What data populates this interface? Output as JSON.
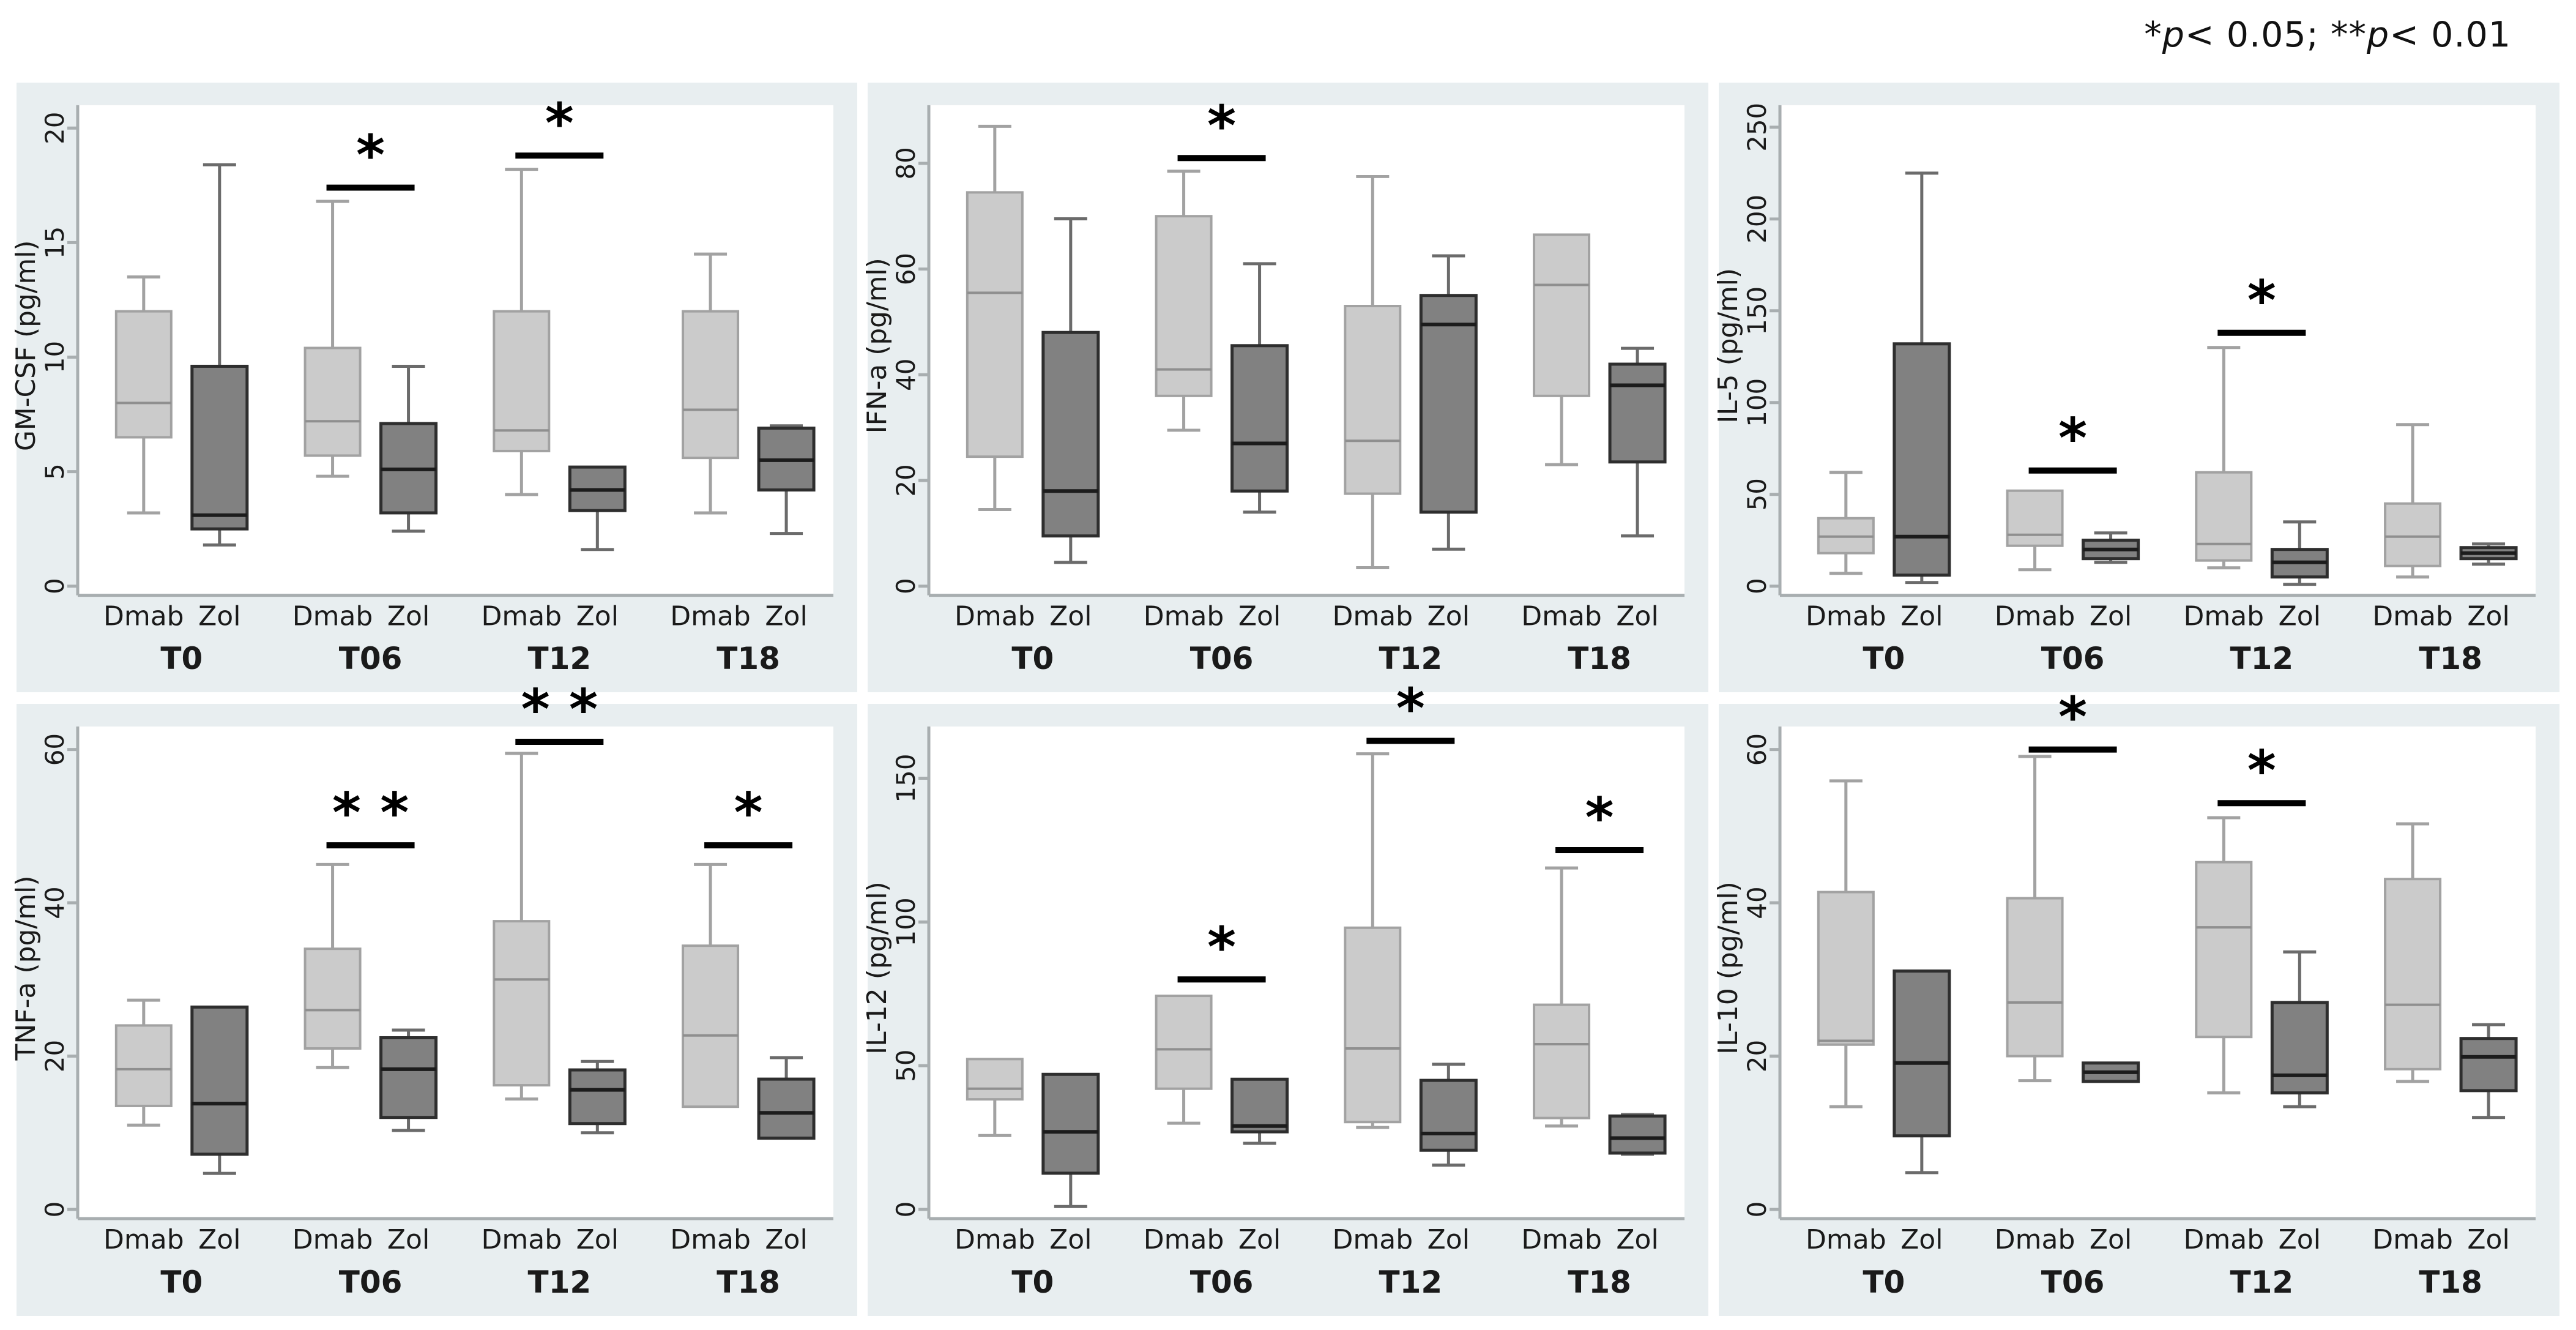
{
  "annotation": {
    "text": "*p< 0.05; **p< 0.01",
    "parts": [
      {
        "text": "*",
        "italic": false
      },
      {
        "text": "p",
        "italic": true
      },
      {
        "text": "< 0.05; ",
        "italic": false
      },
      {
        "text": "**",
        "italic": false
      },
      {
        "text": "p",
        "italic": true
      },
      {
        "text": "< 0.01",
        "italic": false
      }
    ]
  },
  "treatment_labels": [
    "Dmab",
    "Zol"
  ],
  "timepoints": [
    "T0",
    "T06",
    "T12",
    "T18"
  ],
  "colors": {
    "page_bg": "#ffffff",
    "panel_bg": "#e8eef0",
    "plot_bg": "#ffffff",
    "axis": "#a8aeb0",
    "text": "#1a1a1a",
    "dmab_fill": "#cbcbcb",
    "dmab_stroke": "#a2a2a2",
    "dmab_median": "#8f8f8f",
    "dmab_whisker": "#a2a2a2",
    "zol_fill": "#818181",
    "zol_stroke": "#2e2e2e",
    "zol_median": "#1c1c1c",
    "zol_whisker": "#6b6b6b",
    "sig_bar": "#000000"
  },
  "chart_data": [
    {
      "id": "gm-csf",
      "type": "box",
      "ylabel": "GM-CSF (pg/ml)",
      "ylim": [
        0,
        21
      ],
      "yticks": [
        0,
        5,
        10,
        15,
        20
      ],
      "categories": [
        "T0",
        "T06",
        "T12",
        "T18"
      ],
      "series": [
        {
          "name": "Dmab",
          "boxes": [
            {
              "lo": 3.2,
              "q1": 6.5,
              "med": 8.0,
              "q3": 12.0,
              "hi": 13.5
            },
            {
              "lo": 4.8,
              "q1": 5.7,
              "med": 7.2,
              "q3": 10.4,
              "hi": 16.8
            },
            {
              "lo": 4.0,
              "q1": 5.9,
              "med": 6.8,
              "q3": 12.0,
              "hi": 18.2
            },
            {
              "lo": 3.2,
              "q1": 5.6,
              "med": 7.7,
              "q3": 12.0,
              "hi": 14.5
            }
          ]
        },
        {
          "name": "Zol",
          "boxes": [
            {
              "lo": 1.8,
              "q1": 2.5,
              "med": 3.1,
              "q3": 9.6,
              "hi": 18.4
            },
            {
              "lo": 2.4,
              "q1": 3.2,
              "med": 5.1,
              "q3": 7.1,
              "hi": 9.6
            },
            {
              "lo": 1.6,
              "q1": 3.3,
              "med": 4.2,
              "q3": 5.2,
              "hi": 5.2
            },
            {
              "lo": 2.3,
              "q1": 4.2,
              "med": 5.5,
              "q3": 6.9,
              "hi": 7.0
            }
          ]
        }
      ],
      "significance": [
        {
          "at": "T06",
          "label": "*",
          "y": 17.4
        },
        {
          "at": "T12",
          "label": "*",
          "y": 18.8
        }
      ]
    },
    {
      "id": "ifn-a",
      "type": "box",
      "ylabel": "IFN-a (pg/ml)",
      "ylim": [
        0,
        91
      ],
      "yticks": [
        0,
        20,
        40,
        60,
        80
      ],
      "categories": [
        "T0",
        "T06",
        "T12",
        "T18"
      ],
      "series": [
        {
          "name": "Dmab",
          "boxes": [
            {
              "lo": 14.5,
              "q1": 24.5,
              "med": 55.5,
              "q3": 74.5,
              "hi": 87.0
            },
            {
              "lo": 29.5,
              "q1": 36.0,
              "med": 41.0,
              "q3": 70.0,
              "hi": 78.5
            },
            {
              "lo": 3.5,
              "q1": 17.5,
              "med": 27.5,
              "q3": 53.0,
              "hi": 77.5
            },
            {
              "lo": 23.0,
              "q1": 36.0,
              "med": 57.0,
              "q3": 66.5,
              "hi": 66.5
            }
          ]
        },
        {
          "name": "Zol",
          "boxes": [
            {
              "lo": 4.5,
              "q1": 9.5,
              "med": 18.0,
              "q3": 48.0,
              "hi": 69.5
            },
            {
              "lo": 14.0,
              "q1": 18.0,
              "med": 27.0,
              "q3": 45.5,
              "hi": 61.0
            },
            {
              "lo": 7.0,
              "q1": 14.0,
              "med": 49.5,
              "q3": 55.0,
              "hi": 62.5
            },
            {
              "lo": 9.5,
              "q1": 23.5,
              "med": 38.0,
              "q3": 42.0,
              "hi": 45.0
            }
          ]
        }
      ],
      "significance": [
        {
          "at": "T06",
          "label": "*",
          "y": 81
        }
      ]
    },
    {
      "id": "il-5",
      "type": "box",
      "ylabel": "IL-5 (pg/ml)",
      "ylim": [
        0,
        262
      ],
      "yticks": [
        0,
        50,
        100,
        150,
        200,
        250
      ],
      "categories": [
        "T0",
        "T06",
        "T12",
        "T18"
      ],
      "series": [
        {
          "name": "Dmab",
          "boxes": [
            {
              "lo": 7,
              "q1": 18,
              "med": 27,
              "q3": 37,
              "hi": 62
            },
            {
              "lo": 9,
              "q1": 22,
              "med": 28,
              "q3": 52,
              "hi": 52
            },
            {
              "lo": 10,
              "q1": 14,
              "med": 23,
              "q3": 62,
              "hi": 130
            },
            {
              "lo": 5,
              "q1": 11,
              "med": 27,
              "q3": 45,
              "hi": 88
            }
          ]
        },
        {
          "name": "Zol",
          "boxes": [
            {
              "lo": 2,
              "q1": 6,
              "med": 27,
              "q3": 132,
              "hi": 225
            },
            {
              "lo": 13,
              "q1": 15,
              "med": 20,
              "q3": 25,
              "hi": 29
            },
            {
              "lo": 1,
              "q1": 5,
              "med": 13,
              "q3": 20,
              "hi": 35
            },
            {
              "lo": 12,
              "q1": 15,
              "med": 18,
              "q3": 21,
              "hi": 23
            }
          ]
        }
      ],
      "significance": [
        {
          "at": "T06",
          "label": "*",
          "y": 63
        },
        {
          "at": "T12",
          "label": "*",
          "y": 138
        }
      ]
    },
    {
      "id": "tnf-a",
      "type": "box",
      "ylabel": "TNF-a (pg/ml)",
      "ylim": [
        0,
        63
      ],
      "yticks": [
        0,
        20,
        40,
        60
      ],
      "categories": [
        "T0",
        "T06",
        "T12",
        "T18"
      ],
      "series": [
        {
          "name": "Dmab",
          "boxes": [
            {
              "lo": 11.0,
              "q1": 13.5,
              "med": 18.3,
              "q3": 24.0,
              "hi": 27.3
            },
            {
              "lo": 18.5,
              "q1": 21.0,
              "med": 26.0,
              "q3": 34.0,
              "hi": 45.0
            },
            {
              "lo": 14.4,
              "q1": 16.2,
              "med": 30.0,
              "q3": 37.6,
              "hi": 59.5
            },
            {
              "lo": 13.4,
              "q1": 13.4,
              "med": 22.7,
              "q3": 34.4,
              "hi": 45.0
            }
          ]
        },
        {
          "name": "Zol",
          "boxes": [
            {
              "lo": 4.7,
              "q1": 7.2,
              "med": 13.8,
              "q3": 26.4,
              "hi": 26.4
            },
            {
              "lo": 10.3,
              "q1": 12.0,
              "med": 18.3,
              "q3": 22.4,
              "hi": 23.4
            },
            {
              "lo": 10.0,
              "q1": 11.2,
              "med": 15.6,
              "q3": 18.2,
              "hi": 19.3
            },
            {
              "lo": 9.3,
              "q1": 9.3,
              "med": 12.6,
              "q3": 17.0,
              "hi": 19.8
            }
          ]
        }
      ],
      "significance": [
        {
          "at": "T06",
          "label": "* *",
          "y": 47.5
        },
        {
          "at": "T12",
          "label": "* *",
          "y": 61
        },
        {
          "at": "T18",
          "label": "*",
          "y": 47.5
        }
      ]
    },
    {
      "id": "il-12",
      "type": "box",
      "ylabel": "IL-12 (pg/ml)",
      "ylim": [
        0,
        168
      ],
      "yticks": [
        0,
        50,
        100,
        150
      ],
      "categories": [
        "T0",
        "T06",
        "T12",
        "T18"
      ],
      "series": [
        {
          "name": "Dmab",
          "boxes": [
            {
              "lo": 25.7,
              "q1": 38.3,
              "med": 42.0,
              "q3": 52.3,
              "hi": 52.3
            },
            {
              "lo": 30.0,
              "q1": 42.0,
              "med": 55.7,
              "q3": 74.3,
              "hi": 74.3
            },
            {
              "lo": 28.5,
              "q1": 30.4,
              "med": 56.0,
              "q3": 98.0,
              "hi": 158.5
            },
            {
              "lo": 29.0,
              "q1": 31.8,
              "med": 57.5,
              "q3": 71.2,
              "hi": 118.8
            }
          ]
        },
        {
          "name": "Zol",
          "boxes": [
            {
              "lo": 1.0,
              "q1": 12.6,
              "med": 27.0,
              "q3": 47.0,
              "hi": 47.0
            },
            {
              "lo": 23.0,
              "q1": 27.0,
              "med": 29.0,
              "q3": 45.3,
              "hi": 45.3
            },
            {
              "lo": 15.4,
              "q1": 20.6,
              "med": 26.4,
              "q3": 44.9,
              "hi": 50.5
            },
            {
              "lo": 19.2,
              "q1": 19.6,
              "med": 24.8,
              "q3": 32.5,
              "hi": 33.0
            }
          ]
        }
      ],
      "significance": [
        {
          "at": "T06",
          "label": "*",
          "y": 80
        },
        {
          "at": "T12",
          "label": "*",
          "y": 163
        },
        {
          "at": "T18",
          "label": "*",
          "y": 125
        }
      ]
    },
    {
      "id": "il-10",
      "type": "box",
      "ylabel": "IL-10 (pg/ml)",
      "ylim": [
        0,
        63
      ],
      "yticks": [
        0,
        20,
        40,
        60
      ],
      "categories": [
        "T0",
        "T06",
        "T12",
        "T18"
      ],
      "series": [
        {
          "name": "Dmab",
          "boxes": [
            {
              "lo": 13.4,
              "q1": 21.5,
              "med": 22.0,
              "q3": 41.4,
              "hi": 55.9
            },
            {
              "lo": 16.8,
              "q1": 20.0,
              "med": 27.0,
              "q3": 40.6,
              "hi": 59.1
            },
            {
              "lo": 15.2,
              "q1": 22.5,
              "med": 36.8,
              "q3": 45.3,
              "hi": 51.1
            },
            {
              "lo": 16.7,
              "q1": 18.3,
              "med": 26.7,
              "q3": 43.1,
              "hi": 50.3
            }
          ]
        },
        {
          "name": "Zol",
          "boxes": [
            {
              "lo": 4.8,
              "q1": 9.6,
              "med": 19.1,
              "q3": 31.1,
              "hi": 31.1
            },
            {
              "lo": 16.7,
              "q1": 16.7,
              "med": 17.9,
              "q3": 19.1,
              "hi": 19.1
            },
            {
              "lo": 13.4,
              "q1": 15.2,
              "med": 17.5,
              "q3": 27.0,
              "hi": 33.6
            },
            {
              "lo": 12.0,
              "q1": 15.5,
              "med": 19.9,
              "q3": 22.3,
              "hi": 24.1
            }
          ]
        }
      ],
      "significance": [
        {
          "at": "T06",
          "label": "*",
          "y": 60
        },
        {
          "at": "T12",
          "label": "*",
          "y": 53
        }
      ]
    }
  ]
}
